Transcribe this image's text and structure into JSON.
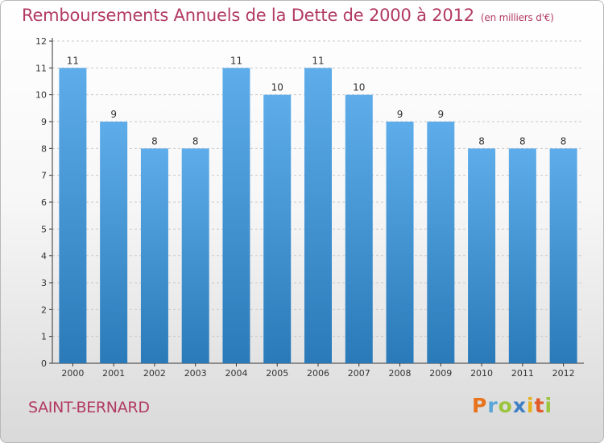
{
  "title": "Remboursements Annuels de la Dette de 2000 à 2012",
  "unit": "(en milliers d'€)",
  "commune": "SAINT-BERNARD",
  "logo": {
    "letters": [
      "P",
      "r",
      "o",
      "x",
      "i",
      "t",
      "i"
    ],
    "colors": [
      "#e8731b",
      "#5aa6d8",
      "#9bc53d",
      "#3f7fc4",
      "#e3b21c",
      "#e05a2a",
      "#9bc53d"
    ]
  },
  "colors": {
    "bar_top": "#5eadea",
    "bar_bottom": "#2a7ab9",
    "title": "#b23a63",
    "grid": "#c8c8c8",
    "axis": "#333333"
  },
  "chart_data": {
    "type": "bar",
    "title": "Remboursements Annuels de la Dette de 2000 à 2012",
    "xlabel": "",
    "ylabel": "(en milliers d'€)",
    "categories": [
      "2000",
      "2001",
      "2002",
      "2003",
      "2004",
      "2005",
      "2006",
      "2007",
      "2008",
      "2009",
      "2010",
      "2011",
      "2012"
    ],
    "values": [
      11,
      9,
      8,
      8,
      11,
      10,
      11,
      10,
      9,
      9,
      8,
      8,
      8
    ],
    "ylim": [
      0,
      12
    ],
    "yticks": [
      0,
      1,
      2,
      3,
      4,
      5,
      6,
      7,
      8,
      9,
      10,
      11,
      12
    ],
    "grid": true
  }
}
